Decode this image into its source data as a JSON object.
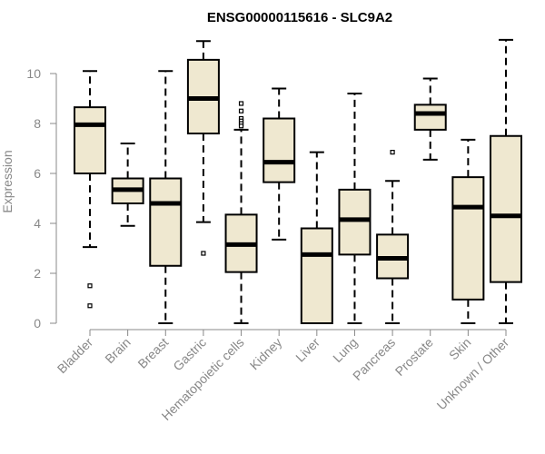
{
  "chart_data": {
    "type": "boxplot",
    "title": "ENSG00000115616 - SLC9A2",
    "xlabel": "",
    "ylabel": "Expression",
    "ylim": [
      0,
      11.5
    ],
    "yticks": [
      0,
      2,
      4,
      6,
      8,
      10
    ],
    "grid": false,
    "legend": "none",
    "box_color": "#efe8d0",
    "median_color": "#000000",
    "categories": [
      "Bladder",
      "Brain",
      "Breast",
      "Gastric",
      "Hematopoietic cells",
      "Kidney",
      "Liver",
      "Lung",
      "Pancreas",
      "Prostate",
      "Skin",
      "Unknown / Other"
    ],
    "boxes": [
      {
        "name": "Bladder",
        "whisker_low": 3.05,
        "q1": 6.0,
        "median": 7.95,
        "q3": 8.65,
        "whisker_high": 10.1,
        "outliers": [
          1.5,
          0.7
        ]
      },
      {
        "name": "Brain",
        "whisker_low": 3.9,
        "q1": 4.8,
        "median": 5.35,
        "q3": 5.8,
        "whisker_high": 7.2,
        "outliers": []
      },
      {
        "name": "Breast",
        "whisker_low": 0.0,
        "q1": 2.3,
        "median": 4.8,
        "q3": 5.8,
        "whisker_high": 10.1,
        "outliers": []
      },
      {
        "name": "Gastric",
        "whisker_low": 4.05,
        "q1": 7.6,
        "median": 9.0,
        "q3": 10.55,
        "whisker_high": 11.3,
        "outliers": [
          2.8
        ]
      },
      {
        "name": "Hematopoietic cells",
        "whisker_low": 0.0,
        "q1": 2.05,
        "median": 3.15,
        "q3": 4.35,
        "whisker_high": 7.75,
        "outliers": [
          8.8,
          8.5,
          8.2,
          8.1,
          8.0,
          7.9
        ]
      },
      {
        "name": "Kidney",
        "whisker_low": 3.35,
        "q1": 5.65,
        "median": 6.45,
        "q3": 8.2,
        "whisker_high": 9.4,
        "outliers": []
      },
      {
        "name": "Liver",
        "whisker_low": 0.0,
        "q1": 0.0,
        "median": 2.75,
        "q3": 3.8,
        "whisker_high": 6.85,
        "outliers": []
      },
      {
        "name": "Lung",
        "whisker_low": 0.0,
        "q1": 2.75,
        "median": 4.15,
        "q3": 5.35,
        "whisker_high": 9.2,
        "outliers": []
      },
      {
        "name": "Pancreas",
        "whisker_low": 0.0,
        "q1": 1.8,
        "median": 2.6,
        "q3": 3.55,
        "whisker_high": 5.7,
        "outliers": [
          6.85
        ]
      },
      {
        "name": "Prostate",
        "whisker_low": 6.55,
        "q1": 7.75,
        "median": 8.4,
        "q3": 8.75,
        "whisker_high": 9.8,
        "outliers": []
      },
      {
        "name": "Skin",
        "whisker_low": 0.0,
        "q1": 0.95,
        "median": 4.65,
        "q3": 5.85,
        "whisker_high": 7.35,
        "outliers": []
      },
      {
        "name": "Unknown / Other",
        "whisker_low": 0.0,
        "q1": 1.65,
        "median": 4.3,
        "q3": 7.5,
        "whisker_high": 11.35,
        "outliers": []
      }
    ]
  }
}
